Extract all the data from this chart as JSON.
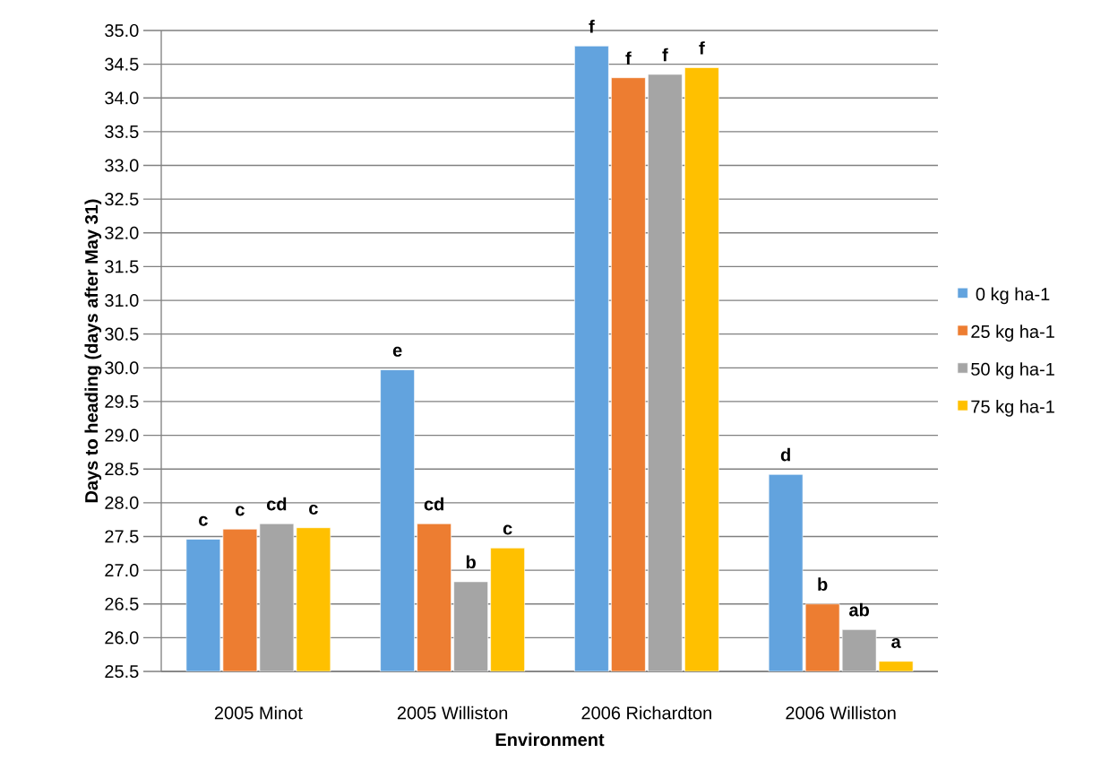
{
  "chart_data": {
    "type": "bar",
    "xlabel": "Environment",
    "ylabel": "Days to heading (days after May 31)",
    "categories": [
      "2005 Minot",
      "2005 Williston",
      "2006 Richardton",
      "2006 Williston"
    ],
    "series": [
      {
        "name": "0 kg ha-1",
        "color": "#62a3de",
        "values": [
          27.46,
          29.97,
          34.77,
          28.42
        ],
        "value_labels": [
          "c",
          "e",
          "f",
          "d"
        ]
      },
      {
        "name": "25 kg ha-1",
        "color": "#ed7d31",
        "values": [
          27.61,
          27.69,
          34.3,
          26.5
        ],
        "value_labels": [
          "c",
          "cd",
          "f",
          "b"
        ]
      },
      {
        "name": "50 kg ha-1",
        "color": "#a5a5a5",
        "values": [
          27.69,
          26.83,
          34.35,
          26.12
        ],
        "value_labels": [
          "cd",
          "b",
          "f",
          "ab"
        ]
      },
      {
        "name": "75 kg ha-1",
        "color": "#ffc000",
        "values": [
          27.63,
          27.33,
          34.45,
          25.65
        ],
        "value_labels": [
          "c",
          "c",
          "f",
          "a"
        ]
      }
    ],
    "ylim": [
      25.5,
      35.0
    ],
    "yticks": [
      {
        "value": 25.5,
        "label": "25.5"
      },
      {
        "value": 26.0,
        "label": "26.0"
      },
      {
        "value": 26.5,
        "label": "26.5"
      },
      {
        "value": 27.0,
        "label": "27.0"
      },
      {
        "value": 27.5,
        "label": "27.5"
      },
      {
        "value": 28.0,
        "label": "28.0"
      },
      {
        "value": 28.5,
        "label": "28.5"
      },
      {
        "value": 29.0,
        "label": "29.0"
      },
      {
        "value": 29.5,
        "label": "29.5"
      },
      {
        "value": 30.0,
        "label": "30.0"
      },
      {
        "value": 30.5,
        "label": "30.5"
      },
      {
        "value": 31.0,
        "label": "31.0"
      },
      {
        "value": 31.5,
        "label": "31.5"
      },
      {
        "value": 32.0,
        "label": "32.0"
      },
      {
        "value": 32.5,
        "label": "32.5"
      },
      {
        "value": 33.0,
        "label": "33.0"
      },
      {
        "value": 33.5,
        "label": "33.5"
      },
      {
        "value": 34.0,
        "label": "34.0"
      },
      {
        "value": 34.5,
        "label": "34.5"
      },
      {
        "value": 35.0,
        "label": "35.0"
      }
    ],
    "grid": "y",
    "legend": "right"
  }
}
